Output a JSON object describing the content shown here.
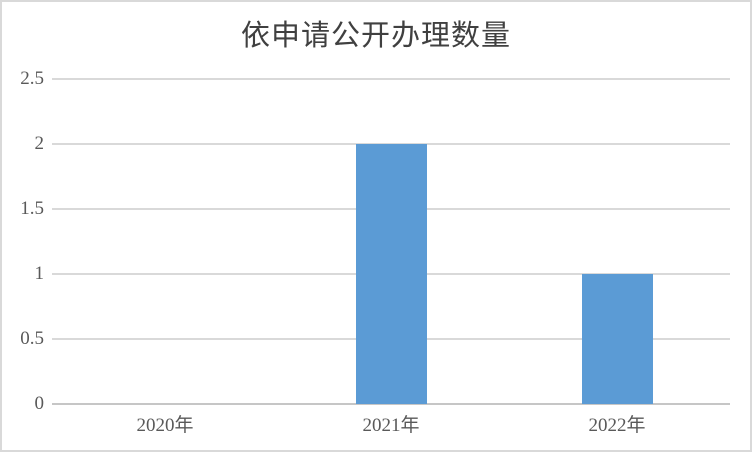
{
  "chart_data": {
    "type": "bar",
    "title": "依申请公开办理数量",
    "categories": [
      "2020年",
      "2021年",
      "2022年"
    ],
    "values": [
      0,
      2,
      1
    ],
    "xlabel": "",
    "ylabel": "",
    "ylim": [
      0,
      2.5
    ],
    "ytick_step": 0.5,
    "yticks": [
      {
        "label": "0",
        "value": 0
      },
      {
        "label": "0.5",
        "value": 0.5
      },
      {
        "label": "1",
        "value": 1
      },
      {
        "label": "1.5",
        "value": 1.5
      },
      {
        "label": "2",
        "value": 2
      },
      {
        "label": "2.5",
        "value": 2.5
      }
    ],
    "grid": "horizontal",
    "legend": "none",
    "colors": {
      "bar": "#5b9bd5",
      "gridline": "#d9d9d9",
      "axis_line": "#c6c6c6",
      "tick_label": "#595959",
      "title": "#404040",
      "chart_border": "#d9d9d9",
      "background": "#ffffff"
    }
  }
}
